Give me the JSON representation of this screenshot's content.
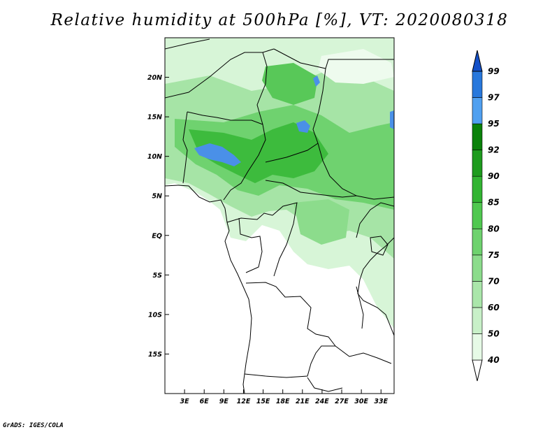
{
  "title": "Relative humidity at 500hPa [%], VT: 2020080318",
  "credit": "GrADS: IGES/COLA",
  "map": {
    "lon_range": [
      0,
      35
    ],
    "lat_range": [
      -20,
      25
    ],
    "lon_ticks": [
      "3E",
      "6E",
      "9E",
      "12E",
      "15E",
      "18E",
      "21E",
      "24E",
      "27E",
      "30E",
      "33E"
    ],
    "lon_tick_values": [
      3,
      6,
      9,
      12,
      15,
      18,
      21,
      24,
      27,
      30,
      33
    ],
    "lat_ticks": [
      "20N",
      "15N",
      "10N",
      "5N",
      "EQ",
      "5S",
      "10S",
      "15S"
    ],
    "lat_tick_values": [
      20,
      15,
      10,
      5,
      0,
      -5,
      -10,
      -15
    ],
    "field": "relative humidity",
    "level": "500hPa",
    "units": "%"
  },
  "colorbar": {
    "levels": [
      "40",
      "50",
      "60",
      "70",
      "75",
      "80",
      "85",
      "90",
      "92",
      "95",
      "97",
      "99"
    ],
    "colors": [
      "#ffffff",
      "#e6fae6",
      "#c8f0c8",
      "#aae6aa",
      "#8cdc8c",
      "#6ed26e",
      "#50c850",
      "#32b432",
      "#1e9b1e",
      "#0a820a",
      "#50a0f0",
      "#2878dc",
      "#1450c8"
    ]
  }
}
